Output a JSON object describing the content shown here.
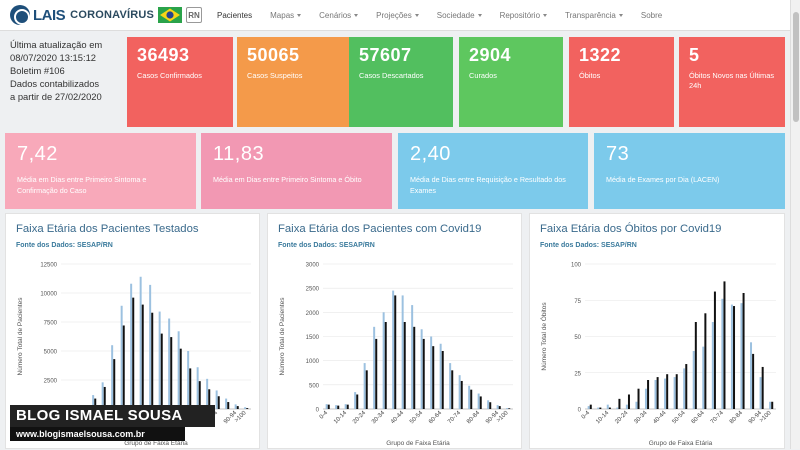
{
  "brand": {
    "lais": "LAIS",
    "title": "CORONAVÍRUS",
    "state": "RN"
  },
  "nav": [
    {
      "label": "Pacientes",
      "dropdown": false,
      "active": true
    },
    {
      "label": "Mapas",
      "dropdown": true
    },
    {
      "label": "Cenários",
      "dropdown": true
    },
    {
      "label": "Projeções",
      "dropdown": true
    },
    {
      "label": "Sociedade",
      "dropdown": true
    },
    {
      "label": "Repositório",
      "dropdown": true
    },
    {
      "label": "Transparência",
      "dropdown": true
    },
    {
      "label": "Sobre",
      "dropdown": false
    }
  ],
  "update": {
    "line1": "Última atualização em",
    "line2": "08/07/2020 13:15:12",
    "line3": "Boletim #106",
    "line4": "Dados contabilizados",
    "line5": "a partir de 27/02/2020"
  },
  "stats": [
    {
      "value": "36493",
      "label": "Casos Confirmados",
      "color": "#f2625f"
    },
    {
      "value": "50065",
      "label": "Casos Suspeitos",
      "color": "#f49a4a"
    },
    {
      "value": "57607",
      "label": "Casos Descartados",
      "color": "#52bf5f"
    },
    {
      "value": "2904",
      "label": "Curados",
      "color": "#5ec75f"
    },
    {
      "value": "1322",
      "label": "Óbitos",
      "color": "#f2625f"
    },
    {
      "value": "5",
      "label": "Óbitos Novos nas Últimas 24h",
      "color": "#f2625f"
    }
  ],
  "averages": [
    {
      "value": "7,42",
      "label": "Média em Dias entre Primeiro Sintoma e Confirmação do Caso",
      "color": "#f8a9ba"
    },
    {
      "value": "11,83",
      "label": "Média em Dias entre Primeiro Sintoma e Óbito",
      "color": "#f298b3"
    },
    {
      "value": "2,40",
      "label": "Média de Dias entre Requisição e Resultado dos Exames",
      "color": "#7ccaeb"
    },
    {
      "value": "73",
      "label": "Média de Exames por Dia (LACEN)",
      "color": "#7ccaeb"
    }
  ],
  "watermark": {
    "top": "BLOG ISMAEL SOUSA",
    "bottom": "www.blogismaelsousa.com.br"
  },
  "chart_data": [
    {
      "type": "bar",
      "title": "Faixa Etária dos Pacientes Testados",
      "subtitle": "Fonte dos Dados: SESAP/RN",
      "xlabel": "Grupo de Faixa Etária",
      "ylabel": "Número Total de Pacientes",
      "ylim": [
        0,
        12500
      ],
      "yticks": [
        0,
        2500,
        5000,
        7500,
        10000,
        12500
      ],
      "categories": [
        "0-4",
        "5-9",
        "10-14",
        "15-19",
        "20-24",
        "25-29",
        "30-34",
        "35-39",
        "40-44",
        "45-49",
        "50-54",
        "55-59",
        "60-64",
        "65-69",
        "70-74",
        "75-79",
        "80-84",
        "85-89",
        "90-94",
        ">100"
      ],
      "series": [
        {
          "color": "#9cc1e0",
          "values": [
            150,
            200,
            300,
            1200,
            2300,
            5500,
            8900,
            10800,
            11400,
            10700,
            8400,
            7800,
            6700,
            5000,
            3600,
            2600,
            1600,
            900,
            400,
            150
          ]
        },
        {
          "color": "#111111",
          "values": [
            100,
            150,
            250,
            900,
            1900,
            4300,
            7200,
            9600,
            9000,
            8300,
            6500,
            6200,
            5200,
            3500,
            2400,
            1700,
            1100,
            600,
            250,
            80
          ]
        }
      ]
    },
    {
      "type": "bar",
      "title": "Faixa Etária dos Pacientes com Covid19",
      "subtitle": "Fonte dos Dados: SESAP/RN",
      "xlabel": "Grupo de Faixa Etária",
      "ylabel": "Número Total de Pacientes",
      "ylim": [
        0,
        3000
      ],
      "yticks": [
        0,
        500,
        1000,
        1500,
        2000,
        2500,
        3000
      ],
      "categories": [
        "0-4",
        "5-9",
        "10-14",
        "15-19",
        "20-24",
        "25-29",
        "30-34",
        "35-39",
        "40-44",
        "45-49",
        "50-54",
        "55-59",
        "60-64",
        "65-69",
        "70-74",
        "75-79",
        "80-84",
        "85-89",
        "90-94",
        ">100"
      ],
      "series": [
        {
          "color": "#9cc1e0",
          "values": [
            100,
            80,
            100,
            350,
            950,
            1700,
            2000,
            2450,
            2350,
            2150,
            1650,
            1500,
            1350,
            950,
            700,
            480,
            320,
            180,
            80,
            20
          ]
        },
        {
          "color": "#111111",
          "values": [
            90,
            70,
            90,
            300,
            800,
            1450,
            1800,
            2350,
            1800,
            1700,
            1450,
            1300,
            1200,
            800,
            580,
            400,
            260,
            140,
            60,
            15
          ]
        }
      ]
    },
    {
      "type": "bar",
      "title": "Faixa Etária dos Óbitos por Covid19",
      "subtitle": "Fonte dos Dados: SESAP/RN",
      "xlabel": "Grupo de Faixa Etária",
      "ylabel": "Número Total de Óbitos",
      "ylim": [
        0,
        100
      ],
      "yticks": [
        0,
        25,
        50,
        75,
        100
      ],
      "categories": [
        "0-4",
        "5-9",
        "10-14",
        "15-19",
        "20-24",
        "25-29",
        "30-34",
        "35-39",
        "40-44",
        "45-49",
        "50-54",
        "55-59",
        "60-64",
        "65-69",
        "70-74",
        "75-79",
        "80-84",
        "85-89",
        "90-94",
        ">100"
      ],
      "series": [
        {
          "color": "#9cc1e0",
          "values": [
            2,
            1,
            3,
            1,
            3,
            5,
            14,
            20,
            21,
            22,
            28,
            40,
            43,
            60,
            76,
            72,
            73,
            46,
            22,
            5
          ]
        },
        {
          "color": "#111111",
          "values": [
            3,
            1,
            1,
            7,
            10,
            14,
            20,
            22,
            24,
            24,
            31,
            60,
            66,
            81,
            88,
            71,
            80,
            38,
            29,
            5
          ]
        }
      ]
    }
  ]
}
